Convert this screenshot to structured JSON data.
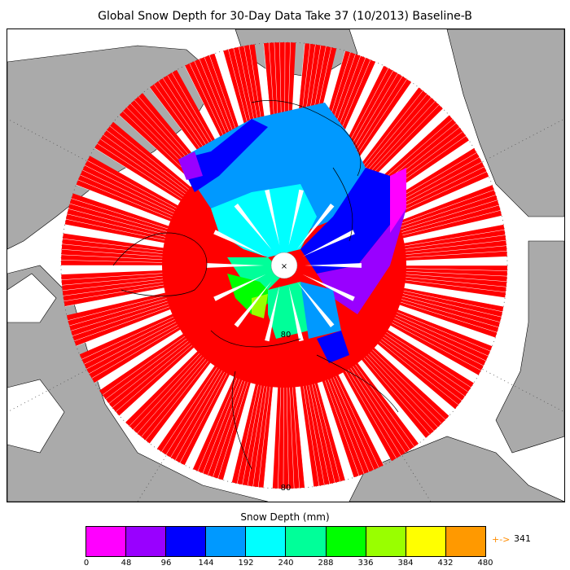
{
  "title": "Global Snow Depth for 30-Day Data Take 37 (10/2013) Baseline-B",
  "map": {
    "projection": "north-polar-stereographic",
    "background_ocean_color": "#ffffff",
    "land_color": "#aaaaaa",
    "no_data_marker": "×",
    "lat_label": "80"
  },
  "legend": {
    "label": "Snow Depth (mm)",
    "bins": [
      {
        "min": 0,
        "max": 48,
        "color": "#ff00ff"
      },
      {
        "min": 48,
        "max": 96,
        "color": "#9900ff"
      },
      {
        "min": 96,
        "max": 144,
        "color": "#0000ff"
      },
      {
        "min": 144,
        "max": 192,
        "color": "#0099ff"
      },
      {
        "min": 192,
        "max": 240,
        "color": "#00ffff"
      },
      {
        "min": 240,
        "max": 288,
        "color": "#00ff99"
      },
      {
        "min": 288,
        "max": 336,
        "color": "#00ff00"
      },
      {
        "min": 336,
        "max": 384,
        "color": "#99ff00"
      },
      {
        "min": 384,
        "max": 432,
        "color": "#ffff00"
      },
      {
        "min": 432,
        "max": 480,
        "color": "#ff9900"
      }
    ],
    "ticks": [
      "0",
      "48",
      "96",
      "144",
      "192",
      "240",
      "288",
      "336",
      "384",
      "432",
      "480"
    ],
    "max_arrow": "+->",
    "max_value": "341",
    "saturated_color": "#ff0000"
  }
}
